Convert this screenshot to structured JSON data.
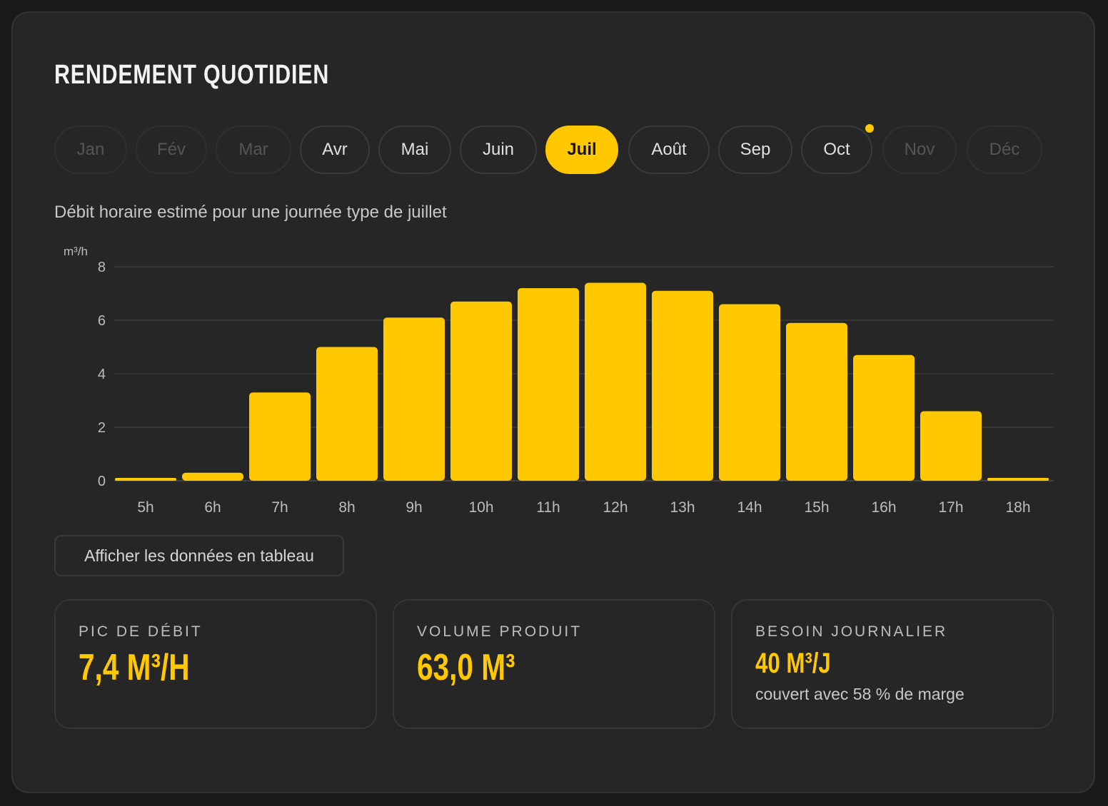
{
  "title": "RENDEMENT QUOTIDIEN",
  "months": [
    {
      "label": "Jan",
      "state": "disabled"
    },
    {
      "label": "Fév",
      "state": "disabled"
    },
    {
      "label": "Mar",
      "state": "disabled"
    },
    {
      "label": "Avr",
      "state": "normal"
    },
    {
      "label": "Mai",
      "state": "normal"
    },
    {
      "label": "Juin",
      "state": "normal"
    },
    {
      "label": "Juil",
      "state": "active"
    },
    {
      "label": "Août",
      "state": "normal"
    },
    {
      "label": "Sep",
      "state": "normal"
    },
    {
      "label": "Oct",
      "state": "normal",
      "marker": true
    },
    {
      "label": "Nov",
      "state": "disabled"
    },
    {
      "label": "Déc",
      "state": "disabled"
    }
  ],
  "subtitle": "Débit horaire estimé pour une journée type de juillet",
  "chart_data": {
    "type": "bar",
    "categories": [
      "5h",
      "6h",
      "7h",
      "8h",
      "9h",
      "10h",
      "11h",
      "12h",
      "13h",
      "14h",
      "15h",
      "16h",
      "17h",
      "18h"
    ],
    "values": [
      0.1,
      0.3,
      3.3,
      5.0,
      6.1,
      6.7,
      7.2,
      7.4,
      7.1,
      6.6,
      5.9,
      4.7,
      2.6,
      0.1
    ],
    "ylabel": "m³/h",
    "yticks": [
      "0",
      "2",
      "4",
      "6",
      "8"
    ],
    "ylim": [
      0,
      8
    ],
    "grid": true,
    "bar_color": "#ffc800"
  },
  "table_button": "Afficher les données en tableau",
  "stats": [
    {
      "label": "PIC DE DÉBIT",
      "value": "7,4 M³/H",
      "note": ""
    },
    {
      "label": "VOLUME PRODUIT",
      "value": "63,0 M³",
      "note": ""
    },
    {
      "label": "BESOIN JOURNALIER",
      "value": "40 M³/J",
      "note": "couvert avec 58 % de marge"
    }
  ],
  "colors": {
    "accent": "#ffc800",
    "background": "#262626"
  }
}
